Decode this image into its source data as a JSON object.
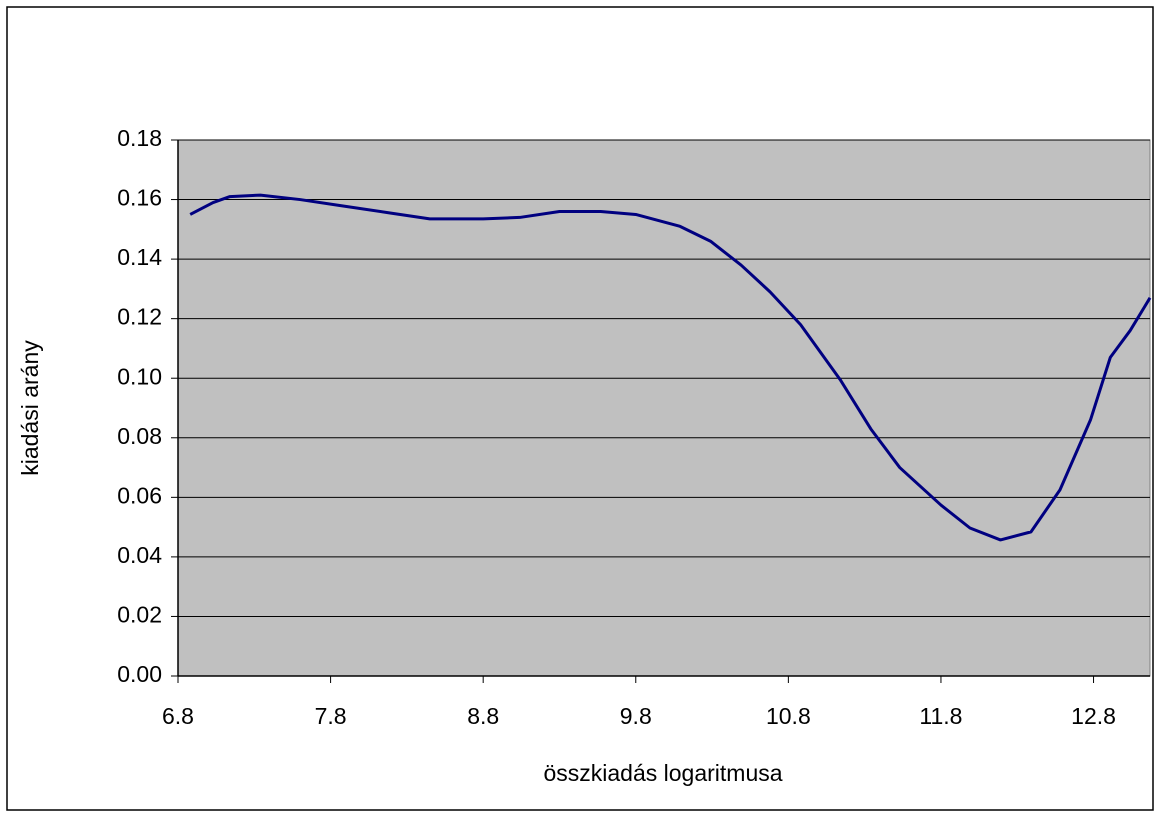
{
  "chart_data": {
    "type": "line",
    "x_label": "összkiadás logaritmusa",
    "y_label": "kiadási arány",
    "x": [
      6.88,
      7.03,
      7.14,
      7.34,
      7.6,
      7.86,
      8.19,
      8.45,
      8.8,
      9.04,
      9.3,
      9.57,
      9.8,
      10.09,
      10.29,
      10.49,
      10.68,
      10.88,
      11.14,
      11.34,
      11.53,
      11.8,
      11.99,
      12.19,
      12.39,
      12.58,
      12.78,
      12.91,
      13.04,
      13.17
    ],
    "series": [
      {
        "color": "#000080",
        "values": [
          0.155,
          0.159,
          0.161,
          0.1615,
          0.16,
          0.158,
          0.1555,
          0.1535,
          0.1535,
          0.154,
          0.156,
          0.156,
          0.155,
          0.151,
          0.146,
          0.138,
          0.129,
          0.118,
          0.0995,
          0.083,
          0.07,
          0.0574,
          0.0497,
          0.0457,
          0.0484,
          0.0625,
          0.086,
          0.107,
          0.116,
          0.127
        ]
      }
    ],
    "xlim": [
      6.8,
      13.17
    ],
    "xticks": [
      6.8,
      7.8,
      8.8,
      9.8,
      10.8,
      11.8,
      12.8
    ],
    "ylim": [
      0,
      0.18
    ],
    "yticks": [
      {
        "value": 0,
        "label": "0.00"
      },
      0.02,
      0.04,
      0.06,
      0.08,
      {
        "value": 0.1,
        "label": "0.10"
      },
      0.12,
      0.14,
      0.16,
      0.18
    ],
    "grid": true,
    "plot_background": "#c0c0c0"
  }
}
